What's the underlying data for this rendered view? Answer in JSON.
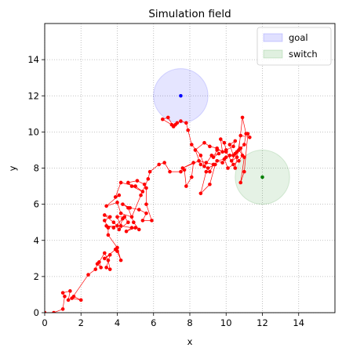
{
  "chart_data": {
    "type": "scatter",
    "title": "Simulation field",
    "xlabel": "x",
    "ylabel": "y",
    "xlim": [
      0,
      16
    ],
    "ylim": [
      0,
      16
    ],
    "xticks": [
      0,
      2,
      4,
      6,
      8,
      10,
      12,
      14
    ],
    "yticks": [
      0,
      2,
      4,
      6,
      8,
      10,
      12,
      14
    ],
    "grid": true,
    "legend_position": "upper right",
    "legend": [
      {
        "label": "goal",
        "color": "#0000ff"
      },
      {
        "label": "switch",
        "color": "#008000"
      }
    ],
    "regions": [
      {
        "name": "goal",
        "center": [
          7.5,
          12.0
        ],
        "radius": 1.5,
        "color": "#0000ff"
      },
      {
        "name": "switch",
        "center": [
          12.0,
          7.5
        ],
        "radius": 1.5,
        "color": "#008000"
      }
    ],
    "series": [
      {
        "color": "#ff0000",
        "values": [
          [
            0.0,
            0.0
          ],
          [
            0.5,
            0.0
          ],
          [
            1.0,
            0.2
          ],
          [
            1.1,
            0.9
          ],
          [
            1.0,
            1.1
          ],
          [
            1.4,
            1.2
          ],
          [
            1.3,
            0.7
          ],
          [
            1.6,
            0.9
          ],
          [
            2.0,
            0.7
          ],
          [
            1.5,
            0.8
          ],
          [
            2.4,
            2.1
          ],
          [
            2.8,
            2.4
          ],
          [
            2.9,
            2.7
          ],
          [
            3.1,
            2.5
          ],
          [
            3.0,
            2.8
          ],
          [
            3.3,
            3.3
          ],
          [
            3.5,
            2.9
          ],
          [
            3.6,
            2.4
          ],
          [
            3.4,
            2.5
          ],
          [
            3.6,
            3.2
          ],
          [
            3.3,
            3.0
          ],
          [
            3.9,
            3.5
          ],
          [
            4.0,
            3.4
          ],
          [
            4.2,
            2.9
          ],
          [
            4.0,
            3.6
          ],
          [
            3.5,
            4.3
          ],
          [
            3.5,
            4.7
          ],
          [
            3.3,
            5.1
          ],
          [
            3.6,
            5.3
          ],
          [
            3.3,
            5.4
          ],
          [
            3.8,
            5.0
          ],
          [
            4.0,
            4.8
          ],
          [
            3.4,
            4.8
          ],
          [
            3.8,
            4.7
          ],
          [
            4.3,
            5.2
          ],
          [
            4.1,
            4.6
          ],
          [
            4.6,
            5.0
          ],
          [
            4.4,
            5.3
          ],
          [
            4.0,
            5.3
          ],
          [
            4.2,
            4.8
          ],
          [
            4.8,
            4.7
          ],
          [
            4.5,
            4.5
          ],
          [
            5.0,
            4.7
          ],
          [
            5.2,
            4.6
          ],
          [
            4.9,
            5.0
          ],
          [
            4.6,
            5.8
          ],
          [
            4.3,
            6.0
          ],
          [
            4.7,
            5.8
          ],
          [
            5.2,
            5.7
          ],
          [
            5.6,
            5.5
          ],
          [
            5.4,
            5.1
          ],
          [
            5.9,
            5.1
          ],
          [
            5.6,
            6.0
          ],
          [
            5.6,
            6.9
          ],
          [
            5.5,
            7.1
          ],
          [
            5.1,
            7.3
          ],
          [
            4.6,
            7.2
          ],
          [
            4.8,
            7.0
          ],
          [
            5.4,
            6.7
          ],
          [
            5.0,
            7.0
          ],
          [
            4.2,
            7.2
          ],
          [
            3.9,
            6.4
          ],
          [
            4.1,
            6.5
          ],
          [
            3.4,
            5.9
          ],
          [
            4.0,
            6.1
          ],
          [
            4.2,
            5.5
          ],
          [
            4.8,
            5.3
          ],
          [
            5.3,
            6.5
          ],
          [
            5.7,
            7.4
          ],
          [
            5.8,
            7.8
          ],
          [
            6.3,
            8.2
          ],
          [
            6.6,
            8.3
          ],
          [
            6.9,
            7.8
          ],
          [
            7.5,
            7.8
          ],
          [
            7.7,
            7.9
          ],
          [
            7.8,
            7.0
          ],
          [
            8.1,
            7.5
          ],
          [
            8.2,
            8.3
          ],
          [
            7.6,
            8.0
          ],
          [
            8.5,
            8.4
          ],
          [
            8.9,
            8.3
          ],
          [
            9.3,
            8.2
          ],
          [
            9.1,
            7.8
          ],
          [
            8.9,
            7.8
          ],
          [
            8.6,
            6.6
          ],
          [
            9.1,
            7.1
          ],
          [
            9.4,
            8.2
          ],
          [
            9.0,
            8.0
          ],
          [
            8.6,
            8.2
          ],
          [
            8.3,
            9.0
          ],
          [
            8.8,
            9.4
          ],
          [
            9.1,
            9.2
          ],
          [
            9.5,
            9.1
          ],
          [
            9.8,
            8.9
          ],
          [
            9.7,
            9.6
          ],
          [
            9.9,
            9.4
          ],
          [
            10.0,
            9.0
          ],
          [
            10.4,
            9.2
          ],
          [
            10.5,
            9.5
          ],
          [
            10.2,
            9.3
          ],
          [
            10.4,
            8.7
          ],
          [
            10.6,
            8.9
          ],
          [
            10.3,
            8.4
          ],
          [
            10.6,
            8.6
          ],
          [
            10.5,
            8.8
          ],
          [
            10.2,
            8.7
          ],
          [
            10.0,
            8.6
          ],
          [
            9.8,
            8.3
          ],
          [
            9.5,
            8.4
          ],
          [
            9.9,
            8.5
          ],
          [
            10.1,
            8.0
          ],
          [
            10.4,
            8.2
          ],
          [
            10.7,
            8.4
          ],
          [
            10.9,
            8.7
          ],
          [
            10.8,
            9.1
          ],
          [
            11.0,
            9.3
          ],
          [
            11.1,
            9.9
          ],
          [
            10.9,
            10.8
          ],
          [
            10.7,
            9.0
          ],
          [
            11.0,
            8.6
          ],
          [
            10.8,
            7.2
          ],
          [
            11.0,
            7.8
          ],
          [
            11.2,
            9.9
          ],
          [
            11.3,
            9.7
          ],
          [
            10.8,
            9.8
          ],
          [
            10.5,
            8.0
          ],
          [
            10.0,
            8.9
          ],
          [
            9.5,
            9.0
          ],
          [
            9.3,
            8.6
          ],
          [
            9.6,
            8.8
          ],
          [
            9.2,
            8.7
          ],
          [
            8.8,
            8.1
          ],
          [
            8.6,
            8.7
          ],
          [
            8.1,
            9.3
          ],
          [
            7.9,
            10.1
          ],
          [
            7.8,
            10.5
          ],
          [
            7.5,
            10.6
          ],
          [
            7.3,
            10.5
          ],
          [
            7.1,
            10.3
          ],
          [
            6.8,
            10.8
          ],
          [
            6.5,
            10.7
          ],
          [
            7.0,
            10.4
          ],
          [
            7.2,
            10.4
          ]
        ]
      }
    ],
    "markers": [
      {
        "name": "goal-center",
        "x": 7.5,
        "y": 12.0,
        "color": "#0000ff"
      },
      {
        "name": "switch-center",
        "x": 12.0,
        "y": 7.5,
        "color": "#008000"
      }
    ]
  }
}
